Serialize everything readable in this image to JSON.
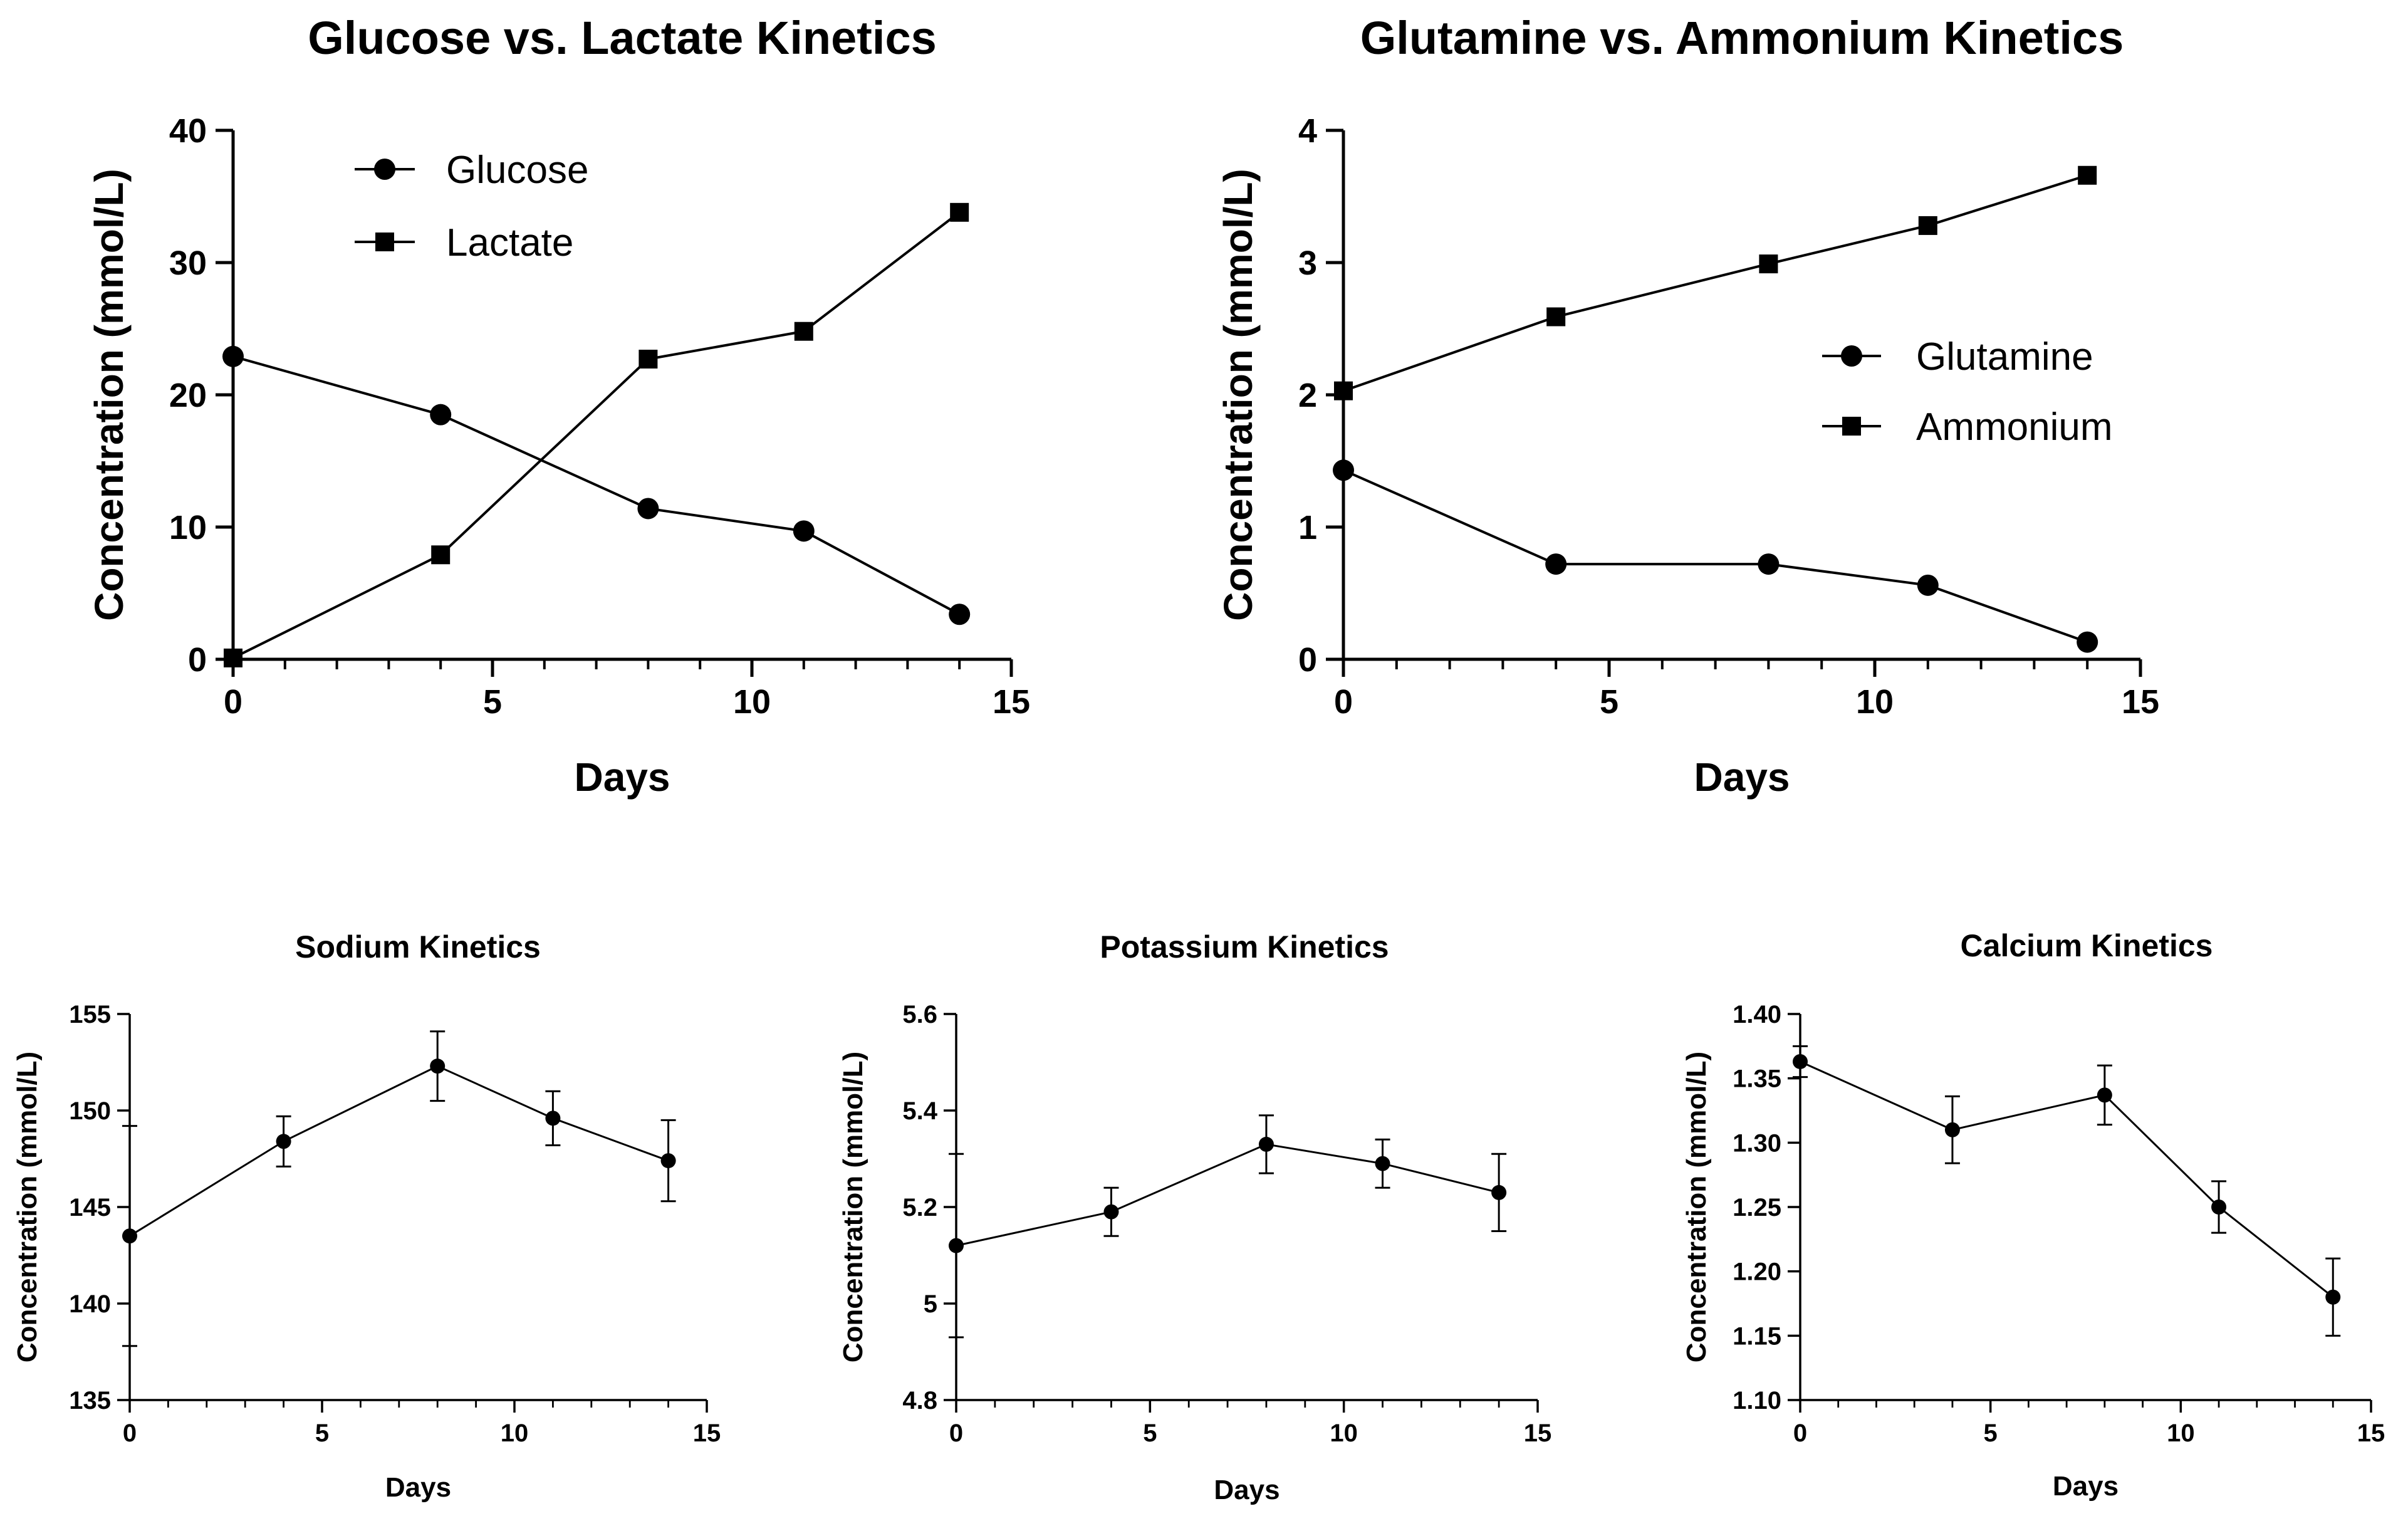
{
  "chart_data": [
    {
      "type": "line",
      "title": "Glucose vs. Lactate Kinetics",
      "xlabel": "Days",
      "ylabel": "Concentration (mmol/L)",
      "xlim": [
        0,
        15
      ],
      "ylim": [
        0,
        40
      ],
      "xticks": [
        0,
        5,
        10,
        15
      ],
      "yticks": [
        0,
        10,
        20,
        30,
        40
      ],
      "legend_position": "top-center",
      "series": [
        {
          "name": "Glucose",
          "marker": "circle",
          "x": [
            0,
            4,
            8,
            11,
            14
          ],
          "y": [
            22.9,
            18.5,
            11.4,
            9.7,
            3.4
          ]
        },
        {
          "name": "Lactate",
          "marker": "square",
          "x": [
            0,
            4,
            8,
            11,
            14
          ],
          "y": [
            0.1,
            7.9,
            22.7,
            24.8,
            33.8
          ]
        }
      ]
    },
    {
      "type": "line",
      "title": "Glutamine vs. Ammonium Kinetics",
      "xlabel": "Days",
      "ylabel": "Concentration (mmol/L)",
      "xlim": [
        0,
        15
      ],
      "ylim": [
        0,
        4
      ],
      "xticks": [
        0,
        5,
        10,
        15
      ],
      "yticks": [
        0,
        1,
        2,
        3,
        4
      ],
      "legend_position": "center-right",
      "series": [
        {
          "name": "Glutamine",
          "marker": "circle",
          "x": [
            0,
            4,
            8,
            11,
            14
          ],
          "y": [
            1.43,
            0.72,
            0.72,
            0.56,
            0.13
          ]
        },
        {
          "name": "Ammonium",
          "marker": "square",
          "x": [
            0,
            4,
            8,
            11,
            14
          ],
          "y": [
            2.03,
            2.59,
            2.99,
            3.28,
            3.66
          ]
        }
      ]
    },
    {
      "type": "line",
      "title": "Sodium Kinetics",
      "xlabel": "Days",
      "ylabel": "Concentration (mmol/L)",
      "xlim": [
        0,
        15
      ],
      "ylim": [
        135,
        155
      ],
      "xticks": [
        0,
        5,
        10,
        15
      ],
      "yticks": [
        135,
        140,
        145,
        150,
        155
      ],
      "series": [
        {
          "marker": "circle",
          "x": [
            0,
            4,
            8,
            11,
            14
          ],
          "y": [
            143.5,
            148.4,
            152.3,
            149.6,
            147.4
          ],
          "error": [
            5.7,
            1.3,
            1.8,
            1.4,
            2.1
          ]
        }
      ]
    },
    {
      "type": "line",
      "title": "Potassium Kinetics",
      "xlabel": "Days",
      "ylabel": "Concentration (mmol/L)",
      "xlim": [
        0,
        15
      ],
      "ylim": [
        4.8,
        5.6
      ],
      "xticks": [
        0,
        5,
        10,
        15
      ],
      "yticks": [
        4.8,
        5.0,
        5.2,
        5.4,
        5.6
      ],
      "series": [
        {
          "marker": "circle",
          "x": [
            0,
            4,
            8,
            11,
            14
          ],
          "y": [
            5.12,
            5.19,
            5.33,
            5.29,
            5.23
          ],
          "error": [
            0.19,
            0.05,
            0.06,
            0.05,
            0.08
          ]
        }
      ]
    },
    {
      "type": "line",
      "title": "Calcium Kinetics",
      "xlabel": "Days",
      "ylabel": "Concentration (mmol/L)",
      "xlim": [
        0,
        15
      ],
      "ylim": [
        1.1,
        1.4
      ],
      "xticks": [
        0,
        5,
        10,
        15
      ],
      "yticks": [
        1.1,
        1.15,
        1.2,
        1.25,
        1.3,
        1.35,
        1.4
      ],
      "ytick_labels": [
        "1.10",
        "1.15",
        "1.20",
        "1.25",
        "1.30",
        "1.35",
        "1.40"
      ],
      "series": [
        {
          "marker": "circle",
          "x": [
            0,
            4,
            8,
            11,
            14
          ],
          "y": [
            1.363,
            1.31,
            1.337,
            1.25,
            1.18
          ],
          "error": [
            0.012,
            0.026,
            0.023,
            0.02,
            0.03
          ]
        }
      ]
    }
  ]
}
